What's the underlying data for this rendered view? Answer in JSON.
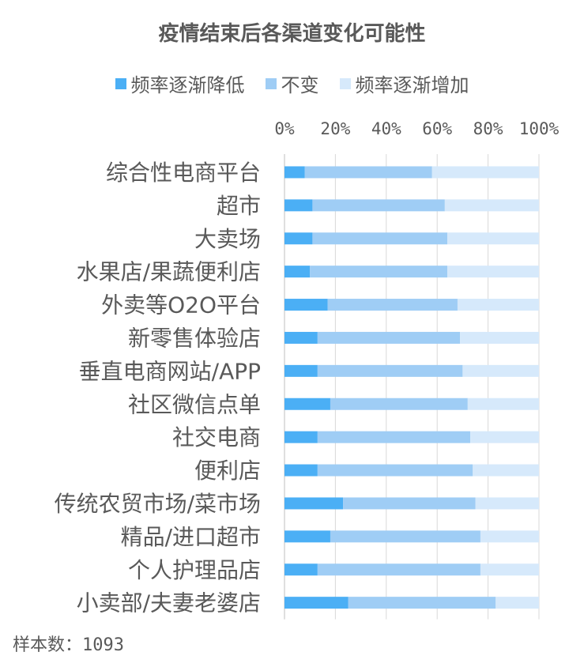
{
  "chart_data": {
    "type": "bar",
    "orientation": "horizontal",
    "stacked": "percent",
    "title": "疫情结束后各渠道变化可能性",
    "legend_position": "top",
    "categories": [
      "综合性电商平台",
      "超市",
      "大卖场",
      "水果店/果蔬便利店",
      "外卖等O2O平台",
      "新零售体验店",
      "垂直电商网站/APP",
      "社区微信点单",
      "社交电商",
      "便利店",
      "传统农贸市场/菜市场",
      "精品/进口超市",
      "个人护理品店",
      "小卖部/夫妻老婆店"
    ],
    "series": [
      {
        "name": "频率逐渐降低",
        "color": "#4BAFF5",
        "values": [
          8,
          11,
          11,
          10,
          17,
          13,
          13,
          18,
          13,
          13,
          23,
          18,
          13,
          25
        ]
      },
      {
        "name": "不变",
        "color": "#9FCDF5",
        "values": [
          50,
          52,
          53,
          54,
          51,
          56,
          57,
          54,
          60,
          61,
          52,
          59,
          64,
          58
        ]
      },
      {
        "name": "频率逐渐增加",
        "color": "#D6E9FB",
        "values": [
          42,
          37,
          36,
          36,
          32,
          31,
          30,
          28,
          27,
          26,
          25,
          23,
          23,
          17
        ]
      }
    ],
    "x_ticks": [
      "0%",
      "20%",
      "40%",
      "60%",
      "80%",
      "100%"
    ],
    "xlim": [
      0,
      100
    ],
    "grid": true
  },
  "footer": {
    "sample_note": "样本数：1093"
  }
}
